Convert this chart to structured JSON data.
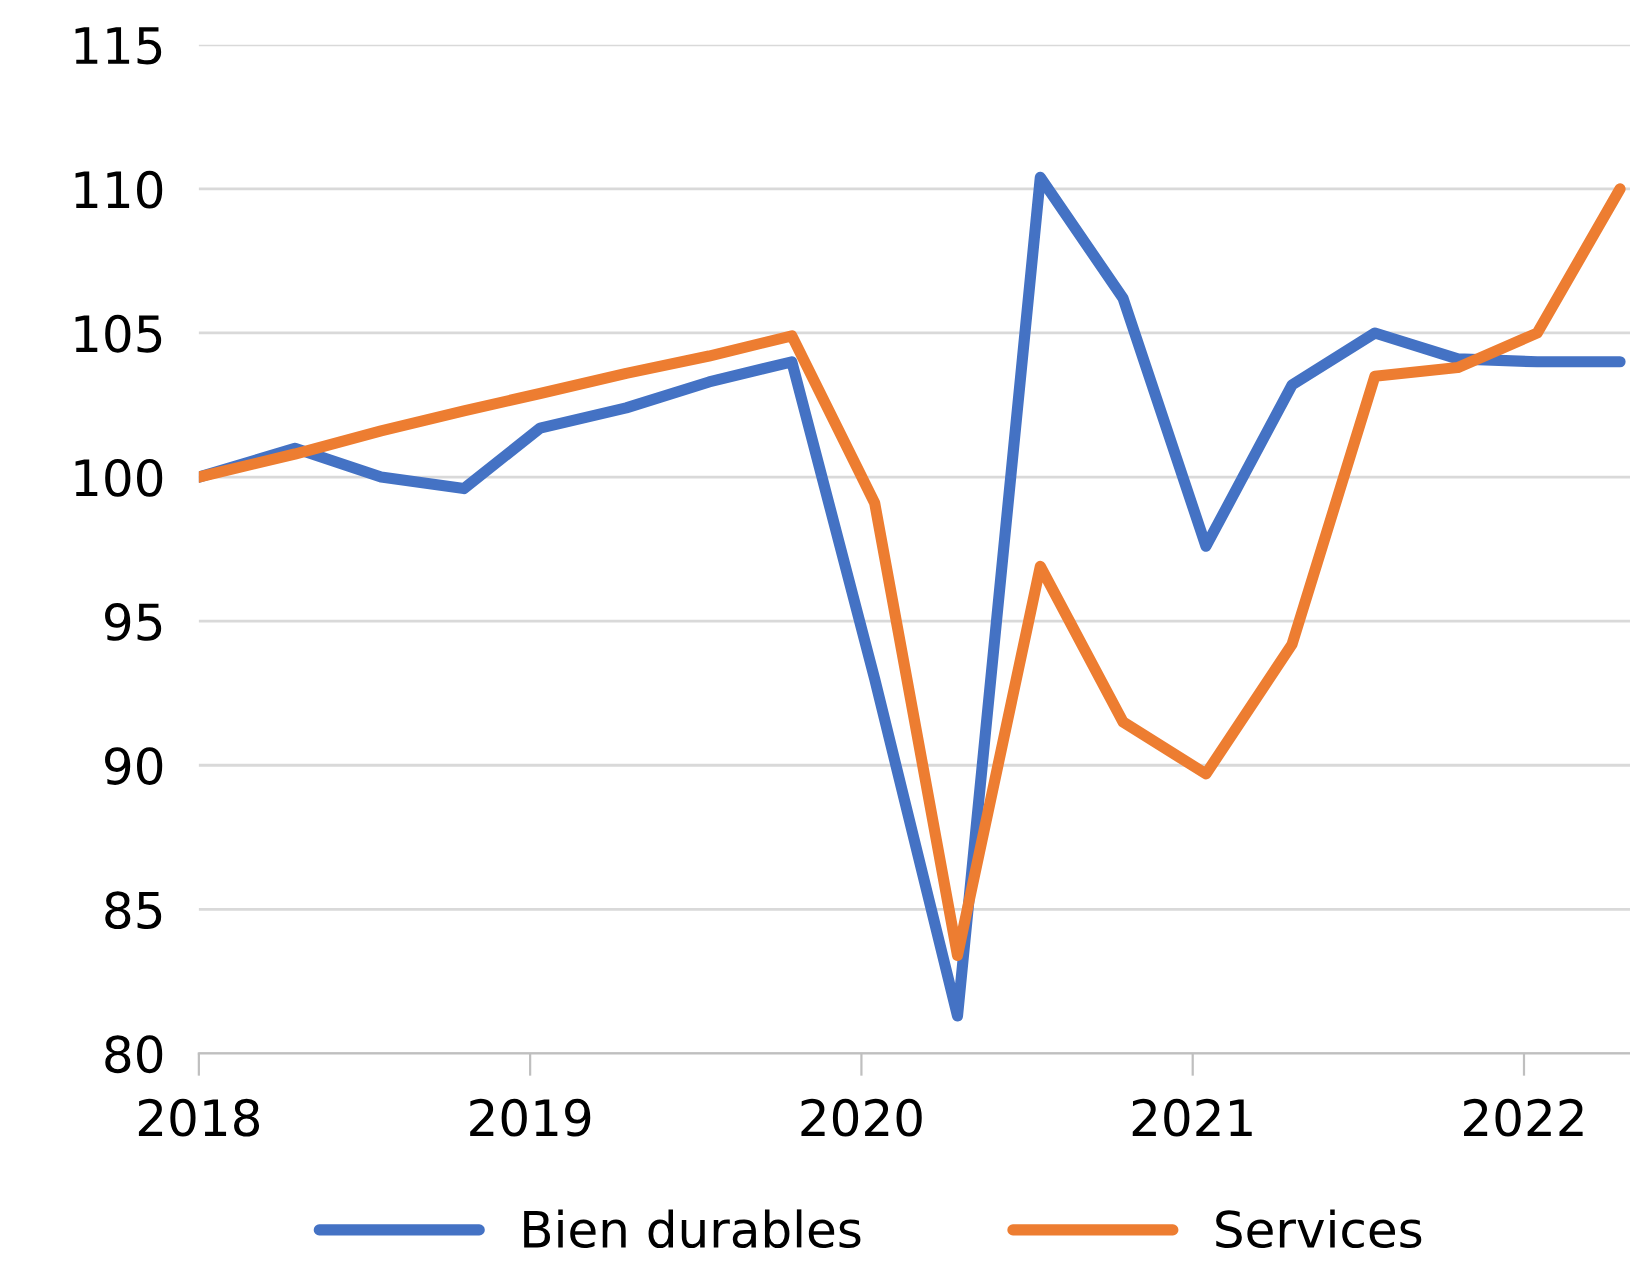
{
  "chart_data": {
    "type": "line",
    "x": [
      2018.0,
      2018.29,
      2018.55,
      2018.8,
      2019.03,
      2019.29,
      2019.54,
      2019.79,
      2020.04,
      2020.29,
      2020.54,
      2020.79,
      2021.04,
      2021.3,
      2021.55,
      2021.8,
      2022.04,
      2022.29
    ],
    "series": [
      {
        "name": "Bien durables",
        "color": "#4472c4",
        "values": [
          100,
          101,
          100,
          99.6,
          101.7,
          102.4,
          103.3,
          104,
          93,
          81.3,
          110.4,
          106.2,
          97.6,
          103.2,
          105,
          104.1,
          104,
          104
        ]
      },
      {
        "name": "Services",
        "color": "#ed7d31",
        "values": [
          100,
          100.8,
          101.6,
          102.3,
          102.9,
          103.6,
          104.2,
          104.9,
          99.1,
          83.4,
          96.9,
          91.5,
          89.7,
          94.2,
          103.5,
          103.8,
          105,
          110
        ]
      }
    ],
    "xlim": [
      2018,
      2022.32
    ],
    "xticks": [
      2018,
      2019,
      2020,
      2021,
      2022
    ],
    "ylim": [
      80,
      115
    ],
    "yticks": [
      80,
      85,
      90,
      95,
      100,
      105,
      110,
      115
    ],
    "grid": "y",
    "legend": "bottom",
    "marker": "none",
    "line_style": "solid"
  }
}
